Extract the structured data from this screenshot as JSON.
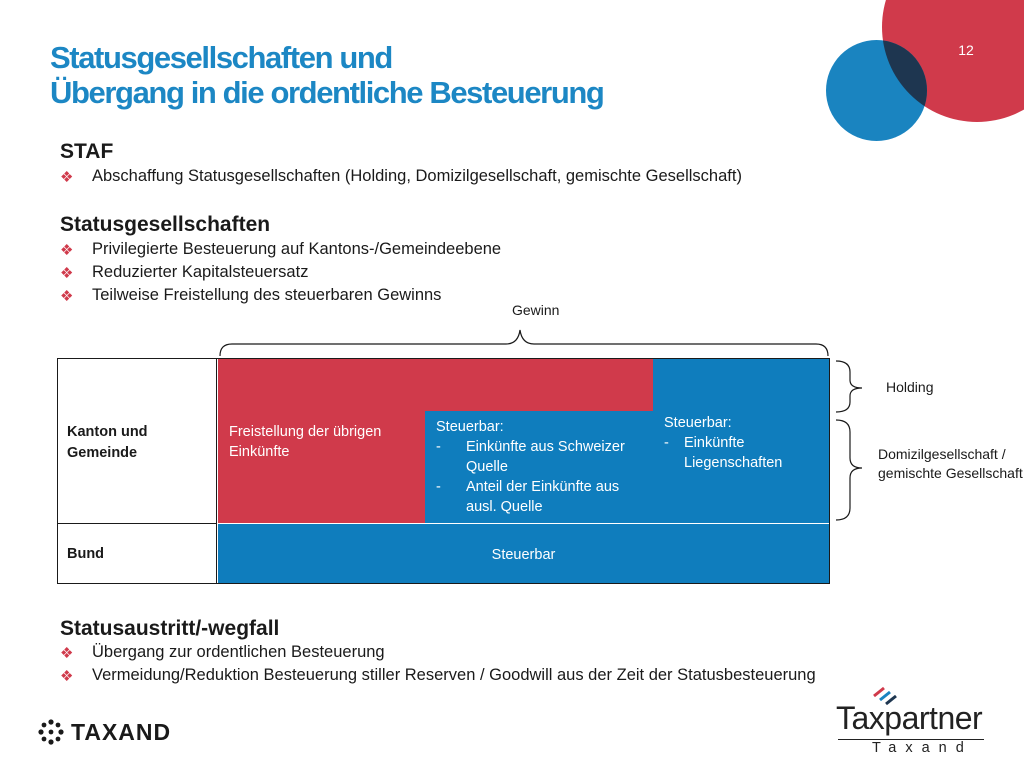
{
  "slide": {
    "page_number": "12",
    "title_line1": "Statusgesellschaften und",
    "title_line2": "Übergang in die ordentliche Besteuerung"
  },
  "sections": {
    "staf": {
      "heading": "STAF",
      "bullets": [
        "Abschaffung Statusgesellschaften (Holding, Domizilgesellschaft, gemischte Gesellschaft)"
      ]
    },
    "status": {
      "heading": "Statusgesellschaften",
      "bullets": [
        "Privilegierte Besteuerung auf Kantons-/Gemeindeebene",
        "Reduzierter Kapitalsteuersatz",
        "Teilweise Freistellung des steuerbaren Gewinns"
      ]
    },
    "austritt": {
      "heading": "Statusaustritt/-wegfall",
      "bullets": [
        "Übergang zur ordentlichen Besteuerung",
        "Vermeidung/Reduktion Besteuerung stiller Reserven / Goodwill aus der Zeit der Statusbesteuerung"
      ]
    }
  },
  "diagram": {
    "gewinn_label": "Gewinn",
    "row_kanton": "Kanton und Gemeinde",
    "row_bund": "Bund",
    "freistellung": "Freistellung der übrigen Einkünfte",
    "steuerbar_mid_title": "Steuerbar:",
    "steuerbar_mid_items": [
      "Einkünfte aus Schweizer Quelle",
      "Anteil der Einkünfte aus ausl. Quelle"
    ],
    "steuerbar_right_title": "Steuerbar:",
    "steuerbar_right_items": [
      "Einkünfte Liegenschaften"
    ],
    "bund_steuerbar": "Steuerbar",
    "bracket_holding": "Holding",
    "bracket_domizil": "Domizilgesellschaft / gemischte Gesellschaft",
    "dash": "-"
  },
  "footer": {
    "taxand_logo": "TAXAND",
    "taxpartner_logo": "Taxpartner",
    "taxpartner_sub": "Taxand"
  },
  "colors": {
    "accent_blue": "#1c87c4",
    "cell_red": "#d03a4b",
    "cell_blue": "#0f7dbd",
    "circle_dark": "#1e3650"
  },
  "icons": {
    "bullet": "diamond-bullet-icon",
    "taxand_mark": "taxand-dots-icon",
    "taxpartner_mark": "taxpartner-stripes-icon"
  }
}
